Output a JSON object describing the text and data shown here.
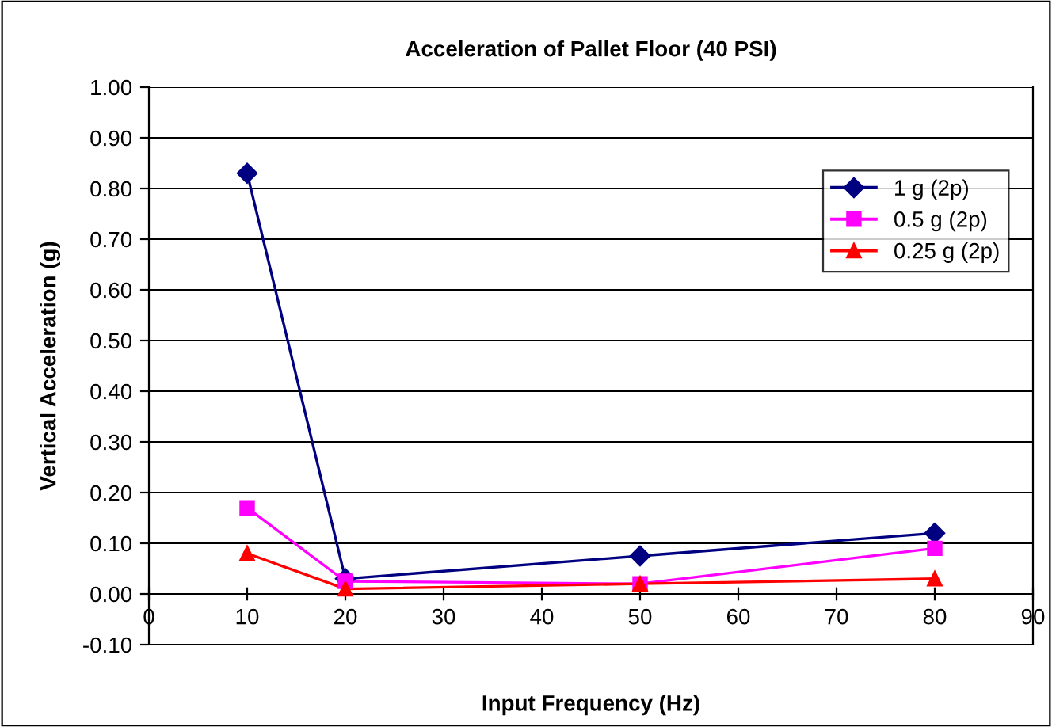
{
  "chart_data": {
    "type": "line",
    "title": "Acceleration of Pallet Floor (40 PSI)",
    "xlabel": "Input Frequency (Hz)",
    "ylabel": "Vertical Acceleration (g)",
    "x": [
      10,
      20,
      50,
      80
    ],
    "series": [
      {
        "name": "1 g (2p)",
        "color": "#000080",
        "marker": "diamond",
        "values": [
          0.83,
          0.03,
          0.075,
          0.12
        ]
      },
      {
        "name": "0.5 g (2p)",
        "color": "#ff00ff",
        "marker": "square",
        "values": [
          0.17,
          0.025,
          0.02,
          0.09
        ]
      },
      {
        "name": "0.25 g (2p)",
        "color": "#ff0000",
        "marker": "triangle",
        "values": [
          0.08,
          0.01,
          0.02,
          0.03
        ]
      }
    ],
    "xlim": [
      0,
      90
    ],
    "xticks": [
      0,
      10,
      20,
      30,
      40,
      50,
      60,
      70,
      80,
      90
    ],
    "ylim": [
      -0.1,
      1.0
    ],
    "yticks": [
      {
        "value": -0.1,
        "label": "-0.10"
      },
      {
        "value": 0,
        "label": "0.00"
      },
      {
        "value": 0.1,
        "label": "0.10"
      },
      {
        "value": 0.2,
        "label": "0.20"
      },
      {
        "value": 0.3,
        "label": "0.30"
      },
      {
        "value": 0.4,
        "label": "0.40"
      },
      {
        "value": 0.5,
        "label": "0.50"
      },
      {
        "value": 0.6,
        "label": "0.60"
      },
      {
        "value": 0.7,
        "label": "0.70"
      },
      {
        "value": 0.8,
        "label": "0.80"
      },
      {
        "value": 0.9,
        "label": "0.90"
      },
      {
        "value": 1.0,
        "label": "1.00"
      }
    ],
    "grid": "y",
    "legend": "top right",
    "line_style": "solid"
  }
}
